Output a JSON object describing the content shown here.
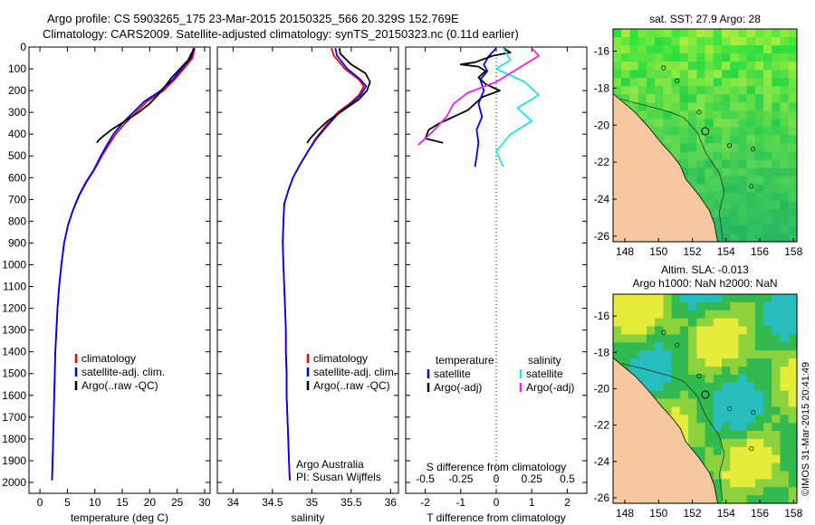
{
  "header": {
    "line1": "Argo profile: CS 5903265_175 23-Mar-2015 20150325_566 20.329S 152.769E",
    "line2": "Climatology: CARS2009. Satellite-adjusted climatology: synTS_20150323.nc (0.11d earlier)"
  },
  "colors": {
    "climatology": "#ff0000",
    "satellite": "#0000ff",
    "argo": "#000000",
    "sal_satellite": "#22e5e5",
    "sal_argo": "#ee22ee",
    "land": "#f5c8a0",
    "ocean": "#33bb55"
  },
  "chart_data": [
    {
      "type": "line",
      "xlabel": "temperature (deg C)",
      "ylabel": "",
      "xlim": [
        -2,
        31
      ],
      "ylim": [
        2050,
        0
      ],
      "xticks": [
        "0",
        "5",
        "10",
        "15",
        "20",
        "25",
        "30"
      ],
      "yticks": [
        "0",
        "100",
        "200",
        "300",
        "400",
        "500",
        "600",
        "700",
        "800",
        "900",
        "1000",
        "1100",
        "1200",
        "1300",
        "1400",
        "1500",
        "1600",
        "1700",
        "1800",
        "1900",
        "2000"
      ],
      "legend": [
        "climatology",
        "satellite-adj. clim.",
        "Argo(..raw -QC)"
      ],
      "legend_position": "lower-middle",
      "series": [
        {
          "name": "climatology",
          "color": "#ff0000",
          "points": [
            [
              28.2,
              5
            ],
            [
              27.8,
              50
            ],
            [
              26.2,
              100
            ],
            [
              24.5,
              150
            ],
            [
              22.5,
              200
            ],
            [
              19.5,
              250
            ],
            [
              17.5,
              300
            ],
            [
              15.5,
              350
            ],
            [
              13.8,
              400
            ],
            [
              12.5,
              450
            ],
            [
              11.3,
              500
            ],
            [
              10.0,
              560
            ],
            [
              8.5,
              620
            ],
            [
              7.2,
              680
            ],
            [
              6.0,
              750
            ],
            [
              5.1,
              820
            ],
            [
              4.4,
              900
            ],
            [
              3.9,
              1000
            ],
            [
              3.5,
              1100
            ],
            [
              3.2,
              1200
            ],
            [
              3.0,
              1300
            ],
            [
              2.8,
              1400
            ],
            [
              2.7,
              1500
            ],
            [
              2.6,
              1600
            ],
            [
              2.5,
              1700
            ],
            [
              2.4,
              1800
            ],
            [
              2.3,
              1900
            ],
            [
              2.2,
              1990
            ]
          ]
        },
        {
          "name": "satellite-adj. clim.",
          "color": "#0000ff",
          "points": [
            [
              28.0,
              5
            ],
            [
              27.5,
              50
            ],
            [
              25.8,
              100
            ],
            [
              24.2,
              150
            ],
            [
              22.0,
              200
            ],
            [
              19.0,
              250
            ],
            [
              17.0,
              300
            ],
            [
              15.0,
              350
            ],
            [
              13.4,
              400
            ],
            [
              12.2,
              450
            ],
            [
              11.1,
              500
            ],
            [
              9.9,
              560
            ],
            [
              8.4,
              620
            ],
            [
              7.1,
              680
            ],
            [
              6.0,
              750
            ],
            [
              5.1,
              820
            ],
            [
              4.4,
              900
            ],
            [
              3.9,
              1000
            ],
            [
              3.5,
              1100
            ],
            [
              3.2,
              1200
            ],
            [
              3.0,
              1300
            ],
            [
              2.8,
              1400
            ],
            [
              2.7,
              1500
            ],
            [
              2.6,
              1600
            ],
            [
              2.5,
              1700
            ],
            [
              2.4,
              1800
            ],
            [
              2.3,
              1900
            ],
            [
              2.2,
              1990
            ]
          ]
        },
        {
          "name": "Argo(..raw -QC)",
          "color": "#000000",
          "points": [
            [
              28.1,
              5
            ],
            [
              27.6,
              30
            ],
            [
              27.0,
              60
            ],
            [
              25.5,
              100
            ],
            [
              24.0,
              140
            ],
            [
              22.8,
              180
            ],
            [
              21.5,
              220
            ],
            [
              20.0,
              260
            ],
            [
              18.0,
              300
            ],
            [
              15.5,
              340
            ],
            [
              13.0,
              380
            ],
            [
              11.5,
              410
            ],
            [
              10.6,
              430
            ],
            [
              10.4,
              440
            ]
          ]
        }
      ]
    },
    {
      "type": "line",
      "xlabel": "salinity",
      "xlim": [
        33.8,
        36.1
      ],
      "ylim": [
        2050,
        0
      ],
      "xticks": [
        "34",
        "34.5",
        "35",
        "35.5",
        "36"
      ],
      "legend": [
        "climatology",
        "satellite-adj. clim.",
        "Argo(..raw -QC)"
      ],
      "legend_position": "lower-middle",
      "annotation": [
        "Argo Australia",
        "PI: Susan Wijffels"
      ],
      "series": [
        {
          "name": "climatology",
          "color": "#ff0000",
          "points": [
            [
              35.25,
              5
            ],
            [
              35.28,
              40
            ],
            [
              35.42,
              100
            ],
            [
              35.6,
              150
            ],
            [
              35.66,
              180
            ],
            [
              35.6,
              220
            ],
            [
              35.48,
              260
            ],
            [
              35.33,
              300
            ],
            [
              35.18,
              360
            ],
            [
              35.05,
              420
            ],
            [
              34.95,
              480
            ],
            [
              34.85,
              540
            ],
            [
              34.76,
              600
            ],
            [
              34.7,
              660
            ],
            [
              34.65,
              720
            ],
            [
              34.64,
              800
            ],
            [
              34.63,
              900
            ],
            [
              34.64,
              1000
            ],
            [
              34.65,
              1100
            ],
            [
              34.66,
              1200
            ],
            [
              34.67,
              1300
            ],
            [
              34.67,
              1400
            ],
            [
              34.68,
              1500
            ],
            [
              34.68,
              1600
            ],
            [
              34.69,
              1700
            ],
            [
              34.7,
              1800
            ],
            [
              34.71,
              1900
            ],
            [
              34.72,
              1990
            ]
          ]
        },
        {
          "name": "satellite-adj. clim.",
          "color": "#0000ff",
          "points": [
            [
              35.3,
              5
            ],
            [
              35.32,
              40
            ],
            [
              35.45,
              100
            ],
            [
              35.62,
              150
            ],
            [
              35.69,
              180
            ],
            [
              35.62,
              220
            ],
            [
              35.5,
              260
            ],
            [
              35.35,
              300
            ],
            [
              35.2,
              360
            ],
            [
              35.06,
              420
            ],
            [
              34.95,
              480
            ],
            [
              34.85,
              540
            ],
            [
              34.76,
              600
            ],
            [
              34.7,
              660
            ],
            [
              34.65,
              720
            ],
            [
              34.64,
              800
            ],
            [
              34.63,
              900
            ],
            [
              34.64,
              1000
            ],
            [
              34.65,
              1100
            ],
            [
              34.66,
              1200
            ],
            [
              34.67,
              1300
            ],
            [
              34.67,
              1400
            ],
            [
              34.68,
              1500
            ],
            [
              34.68,
              1600
            ],
            [
              34.69,
              1700
            ],
            [
              34.7,
              1800
            ],
            [
              34.71,
              1900
            ],
            [
              34.72,
              1990
            ]
          ]
        },
        {
          "name": "Argo(..raw -QC)",
          "color": "#000000",
          "points": [
            [
              35.35,
              5
            ],
            [
              35.36,
              30
            ],
            [
              35.5,
              80
            ],
            [
              35.68,
              120
            ],
            [
              35.74,
              160
            ],
            [
              35.7,
              200
            ],
            [
              35.6,
              240
            ],
            [
              35.4,
              290
            ],
            [
              35.2,
              340
            ],
            [
              35.08,
              380
            ],
            [
              34.98,
              420
            ],
            [
              34.94,
              440
            ]
          ]
        }
      ]
    },
    {
      "type": "line",
      "xlabel": "T difference from climatology",
      "x2label": "S difference from climatology",
      "xlim": [
        -2.55,
        2.55
      ],
      "ylim": [
        2050,
        0
      ],
      "xticks": [
        "-2",
        "-1",
        "0",
        "1",
        "2"
      ],
      "x2ticks": [
        "-0.5",
        "-0.25",
        "0",
        "0.25",
        "0.5"
      ],
      "legend": [
        "temperature",
        "satellite",
        "Argo(-adj)",
        "salinity",
        "satellite",
        "Argo(-adj)"
      ],
      "series": [
        {
          "name": "satellite",
          "color": "#0000ff",
          "points": [
            [
              0.0,
              5
            ],
            [
              -0.2,
              40
            ],
            [
              -0.35,
              80
            ],
            [
              -0.25,
              110
            ],
            [
              -0.45,
              150
            ],
            [
              -0.35,
              200
            ],
            [
              -0.5,
              260
            ],
            [
              -0.4,
              320
            ],
            [
              -0.55,
              380
            ],
            [
              -0.5,
              440
            ],
            [
              -0.55,
              500
            ],
            [
              -0.6,
              550
            ]
          ]
        },
        {
          "name": "Argo(-adj)",
          "color": "#000000",
          "points": [
            [
              0.2,
              5
            ],
            [
              0.4,
              25
            ],
            [
              -0.1,
              40
            ],
            [
              -0.6,
              70
            ],
            [
              -1.0,
              80
            ],
            [
              -0.5,
              90
            ],
            [
              -0.3,
              110
            ],
            [
              -0.5,
              140
            ],
            [
              -0.3,
              170
            ],
            [
              0.1,
              200
            ],
            [
              -0.4,
              230
            ],
            [
              -0.6,
              260
            ],
            [
              -0.8,
              290
            ],
            [
              -1.2,
              320
            ],
            [
              -1.6,
              350
            ],
            [
              -1.9,
              380
            ],
            [
              -2.0,
              420
            ],
            [
              -1.5,
              440
            ]
          ]
        },
        {
          "name": "satellite",
          "color": "#22e5e5",
          "points": [
            [
              0.05,
              5
            ],
            [
              0.1,
              60
            ],
            [
              0.0,
              100
            ],
            [
              0.2,
              160
            ],
            [
              0.3,
              220
            ],
            [
              0.15,
              280
            ],
            [
              0.25,
              340
            ],
            [
              0.1,
              400
            ],
            [
              0.0,
              480
            ],
            [
              0.05,
              550
            ]
          ]
        },
        {
          "name": "Argo(-adj)",
          "color": "#ee22ee",
          "points": [
            [
              0.25,
              5
            ],
            [
              0.3,
              40
            ],
            [
              0.2,
              80
            ],
            [
              0.1,
              120
            ],
            [
              0.0,
              160
            ],
            [
              -0.2,
              210
            ],
            [
              -0.3,
              260
            ],
            [
              -0.35,
              320
            ],
            [
              -0.45,
              390
            ],
            [
              -0.55,
              450
            ]
          ]
        }
      ]
    },
    {
      "type": "heatmap",
      "title": "sat. SST: 27.9 Argo: 28",
      "xlim": [
        147.3,
        158.2
      ],
      "ylim": [
        -26.3,
        -14.8
      ],
      "xticks": [
        "148",
        "150",
        "152",
        "154",
        "156",
        "158"
      ],
      "yticks": [
        "-16",
        "-18",
        "-20",
        "-22",
        "-24",
        "-26"
      ],
      "argo_position": [
        152.769,
        -20.329
      ]
    },
    {
      "type": "heatmap",
      "title": "Altim. SLA: -0.013",
      "subtitle": "Argo h1000: NaN h2000: NaN",
      "xlim": [
        147.3,
        158.2
      ],
      "ylim": [
        -26.3,
        -14.8
      ],
      "xticks": [
        "148",
        "150",
        "152",
        "154",
        "156",
        "158"
      ],
      "yticks": [
        "-16",
        "-18",
        "-20",
        "-22",
        "-24",
        "-26"
      ],
      "argo_position": [
        152.769,
        -20.329
      ]
    }
  ],
  "watermark": "©IMOS 31-Mar-2015 20:41:49"
}
